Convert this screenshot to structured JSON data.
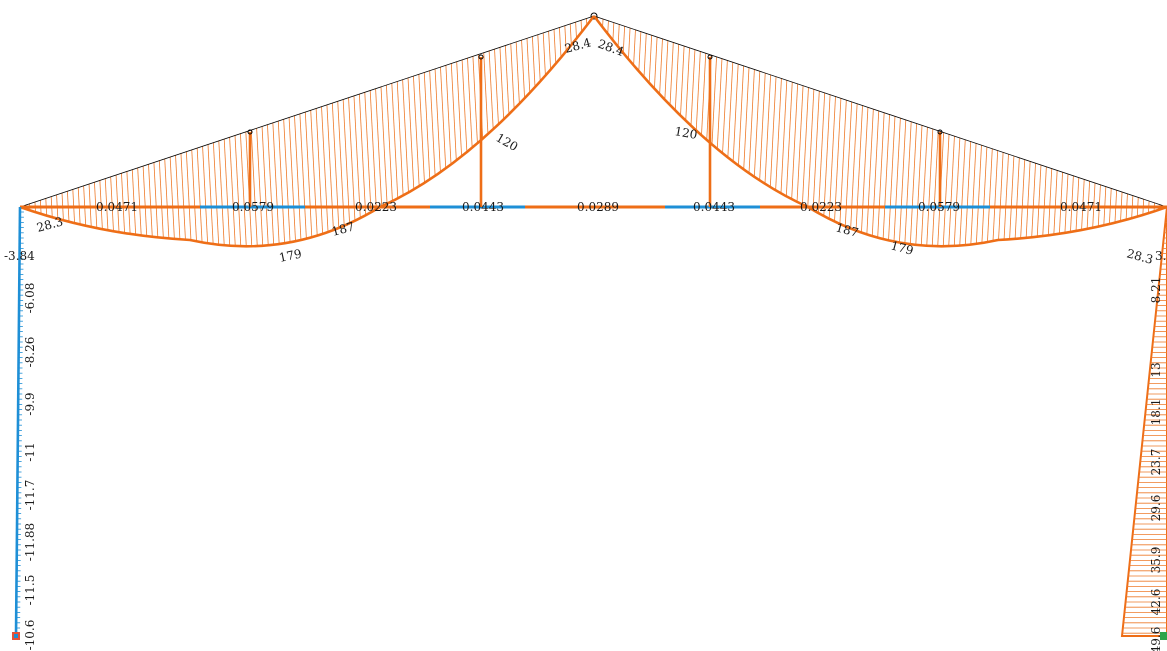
{
  "colors": {
    "moment_curve": "#ee6e17",
    "hatch": "#ee7a2a",
    "member_orange": "#ee6e17",
    "member_blue": "#1e8fd6",
    "truss_outline": "#000000",
    "background": "#ffffff"
  },
  "labels": {
    "tie_left_end": "0.0471",
    "tie_left_2": "0.0579",
    "tie_left_3": "0.0223",
    "tie_left_4": "0.0443",
    "tie_center": "0.0289",
    "tie_right_4": "0.0443",
    "tie_right_3": "0.0223",
    "tie_right_2": "0.0579",
    "tie_right_end": "0.0471",
    "curve_left_end": "28.3",
    "curve_left_max": "179",
    "curve_left_2": "187",
    "curve_left_3": "120",
    "apex_left": "28.4",
    "apex_right": "28.4",
    "curve_right_3": "120",
    "curve_right_2": "187",
    "curve_right_max": "179",
    "curve_right_end": "28.3",
    "left_col_top": "-3.84",
    "right_col_top": "3.",
    "left_col": [
      "-6.08",
      "-8.26",
      "-9.9",
      "-11",
      "-11.7",
      "-11.88",
      "-11.5",
      "-10.6"
    ],
    "right_col": [
      "8.21",
      "13",
      "18.1",
      "23.7",
      "29.6",
      "35.9",
      "42.6",
      "49.6"
    ]
  }
}
